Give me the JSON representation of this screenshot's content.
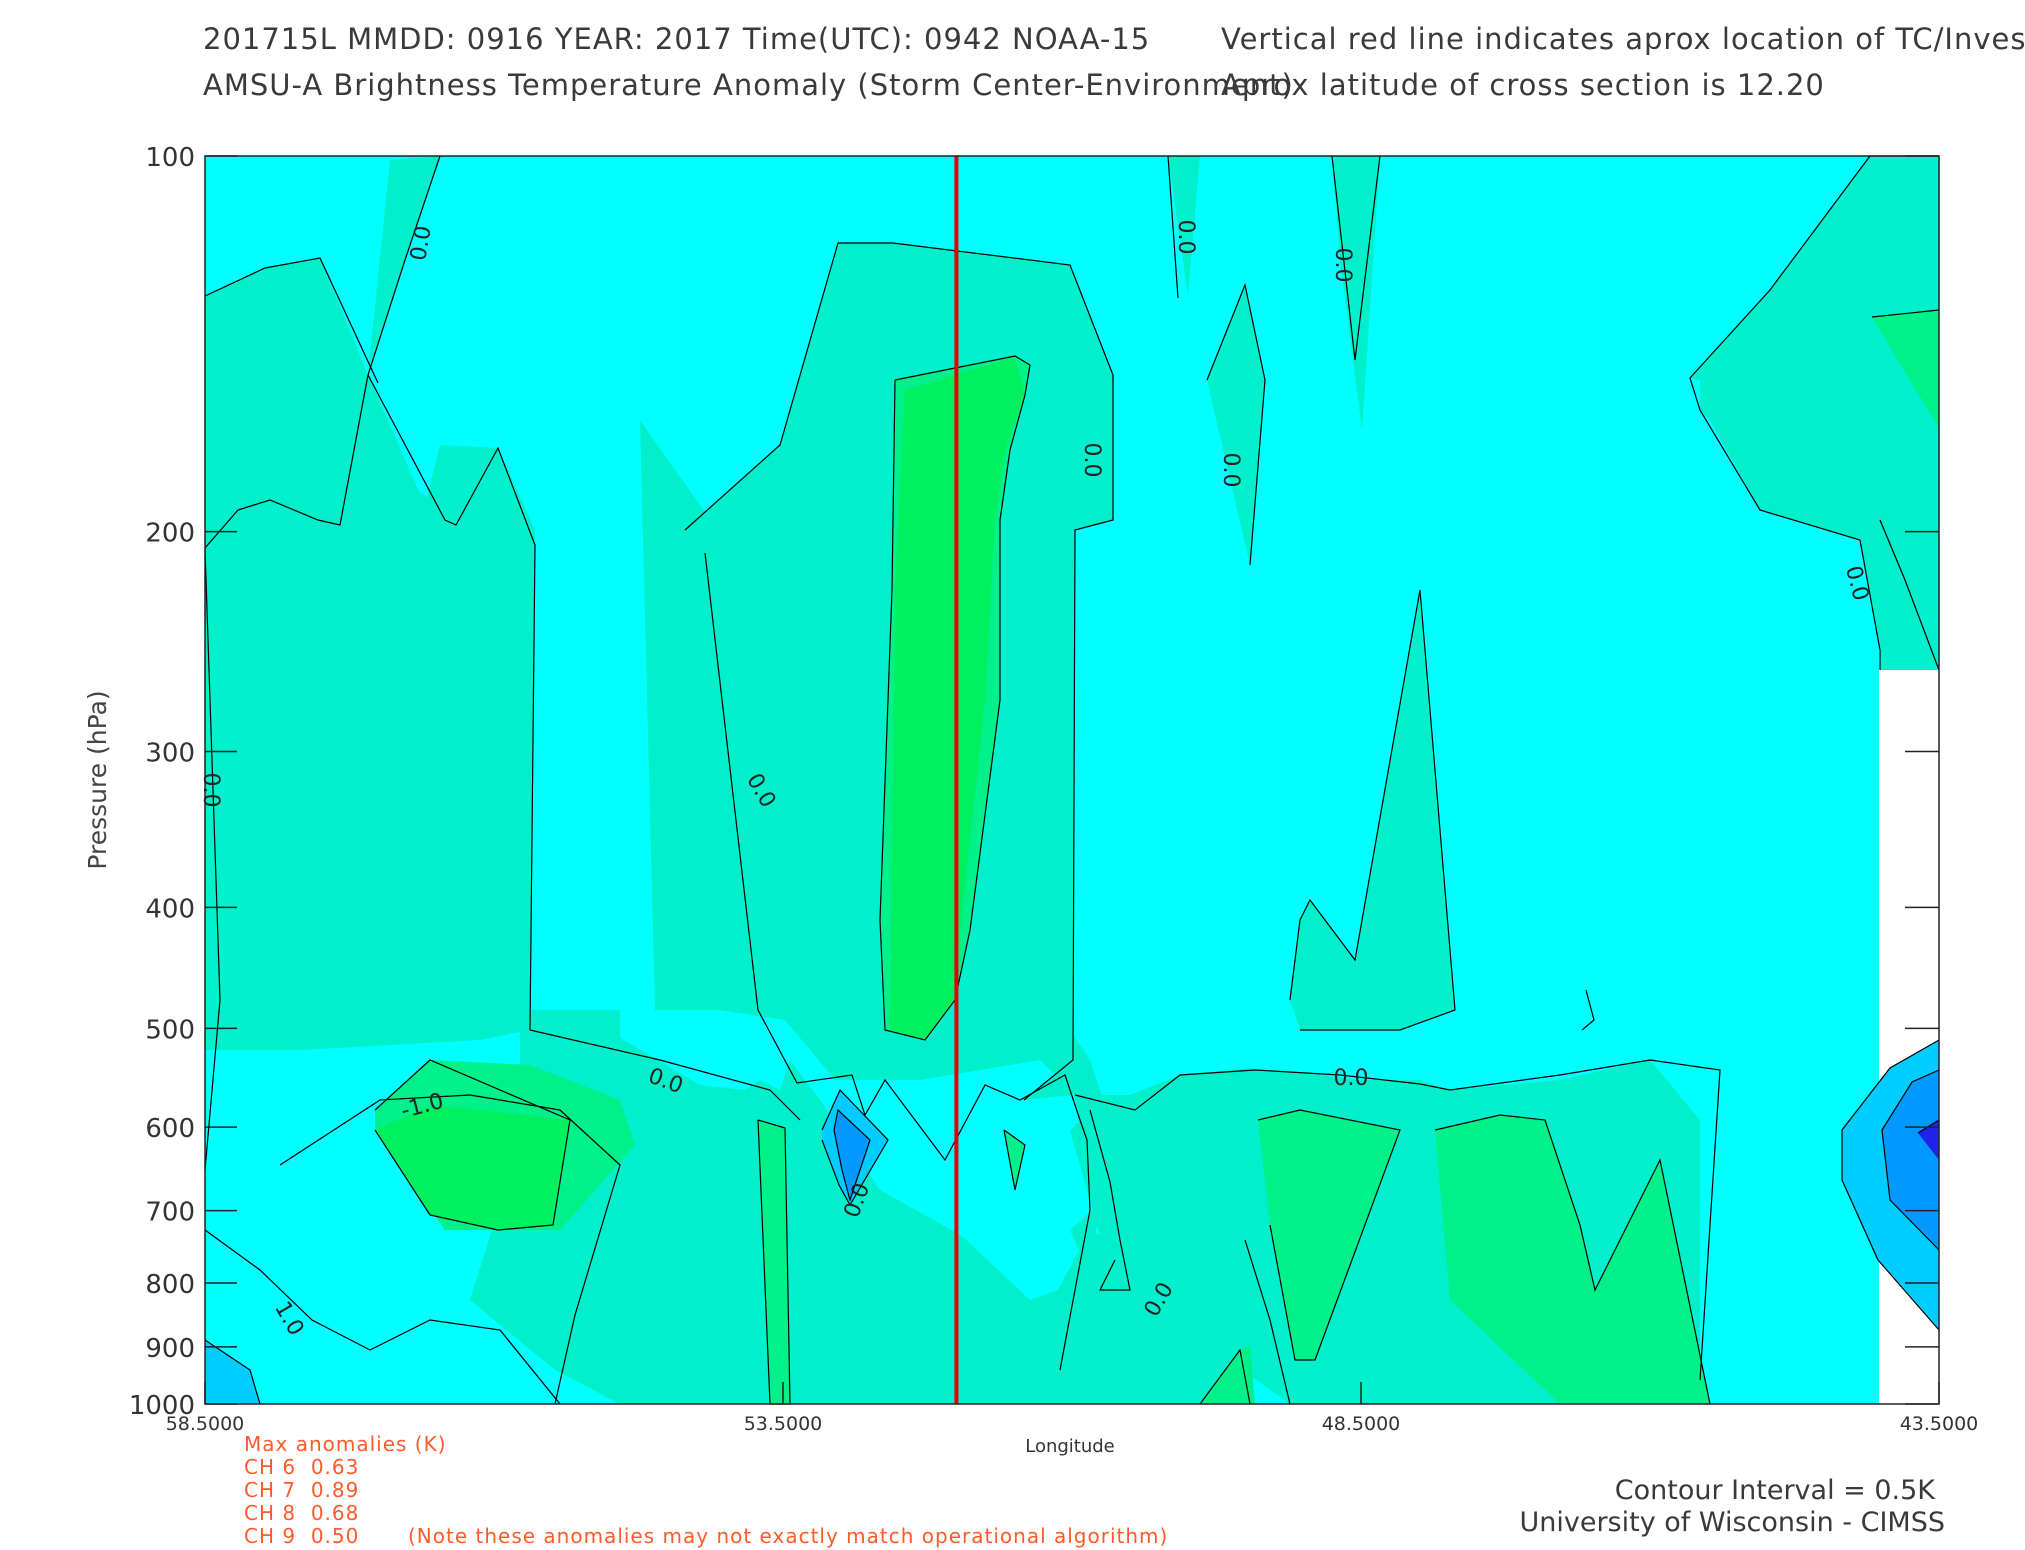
{
  "header": {
    "line1_left": "201715L  MMDD: 0916 YEAR: 2017 Time(UTC): 0942 NOAA-15",
    "line2_left": "AMSU-A Brightness Temperature Anomaly (Storm Center-Environment)",
    "line1_right": "Vertical red line indicates aprox location of TC/Invest",
    "line2_right": "Aprox latitude of cross section is 12.20"
  },
  "chart_data": {
    "type": "heatmap",
    "subtype": "filled-contour cross section",
    "xlabel": "Longitude",
    "ylabel": "Pressure (hPa)",
    "xlim": [
      58.5,
      43.5
    ],
    "ylim": [
      1000,
      100
    ],
    "y_scale": "log",
    "x_ticks": [
      "58.5000",
      "53.5000",
      "48.5000",
      "43.5000"
    ],
    "x_tick_values": [
      58.5,
      53.5,
      48.5,
      43.5
    ],
    "y_ticks": [
      100,
      200,
      300,
      400,
      500,
      600,
      700,
      800,
      900,
      1000
    ],
    "tc_longitude": 52.0,
    "contour_interval_K": 0.5,
    "contour_labels": [
      "0.0",
      "0.0",
      "0.0",
      "0.0",
      "0.0",
      "0.0",
      "0.0",
      "0.0",
      "0.0",
      "0.0",
      "0.0",
      "1.0",
      "-1.0",
      "0.0"
    ],
    "colors": {
      "neutral": "#00ffff",
      "pos_0_5": "#00f0cc",
      "pos_1_0": "#00f08a",
      "pos_1_5": "#00f060",
      "neg_0_5": "#00ccff",
      "neg_1_0": "#0099ff",
      "neg_1_5": "#2222ee",
      "tc_line": "#e40000"
    }
  },
  "anomalies": {
    "title": "Max anomalies (K)",
    "rows": [
      {
        "label": "CH 6",
        "value": "0.63"
      },
      {
        "label": "CH 7",
        "value": "0.89"
      },
      {
        "label": "CH 8",
        "value": "0.68"
      },
      {
        "label": "CH 9",
        "value": "0.50"
      }
    ],
    "note": "(Note these anomalies may not exactly match operational algorithm)"
  },
  "footer": {
    "contour_interval": "Contour Interval = 0.5K",
    "credit": "University of Wisconsin - CIMSS"
  }
}
